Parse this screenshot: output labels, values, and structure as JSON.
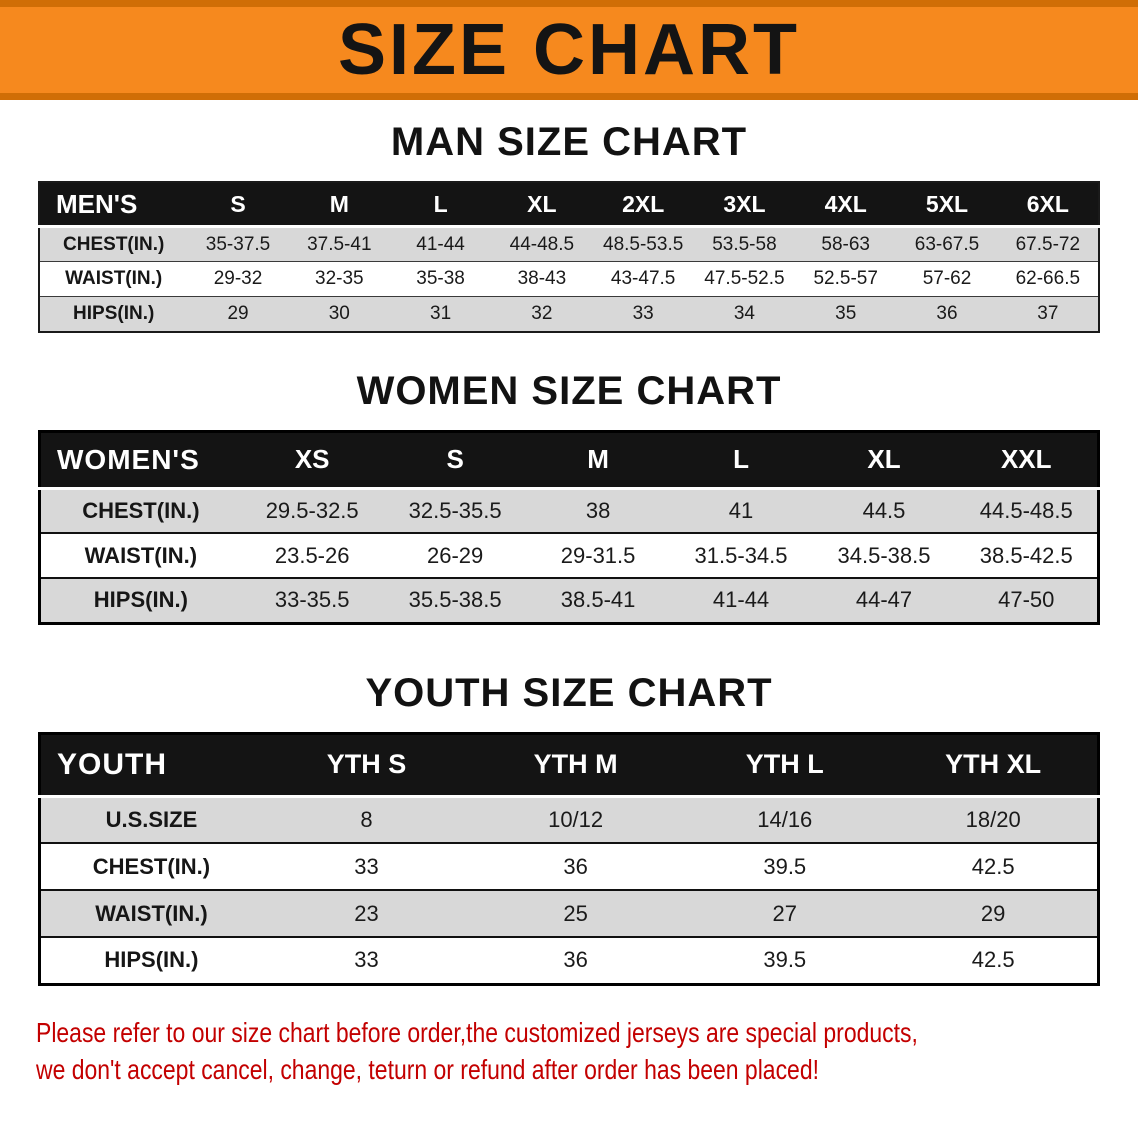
{
  "banner": {
    "title": "SIZE CHART"
  },
  "sections": [
    {
      "id": "men",
      "title": "MAN SIZE CHART",
      "header_label": "MEN'S",
      "columns": [
        "S",
        "M",
        "L",
        "XL",
        "2XL",
        "3XL",
        "4XL",
        "5XL",
        "6XL"
      ],
      "rows": [
        {
          "label": "CHEST(IN.)",
          "values": [
            "35-37.5",
            "37.5-41",
            "41-44",
            "44-48.5",
            "48.5-53.5",
            "53.5-58",
            "58-63",
            "63-67.5",
            "67.5-72"
          ]
        },
        {
          "label": "WAIST(IN.)",
          "values": [
            "29-32",
            "32-35",
            "35-38",
            "38-43",
            "43-47.5",
            "47.5-52.5",
            "52.5-57",
            "57-62",
            "62-66.5"
          ]
        },
        {
          "label": "HIPS(IN.)",
          "values": [
            "29",
            "30",
            "31",
            "32",
            "33",
            "34",
            "35",
            "36",
            "37"
          ]
        }
      ]
    },
    {
      "id": "women",
      "title": "WOMEN SIZE CHART",
      "header_label": "WOMEN'S",
      "columns": [
        "XS",
        "S",
        "M",
        "L",
        "XL",
        "XXL"
      ],
      "rows": [
        {
          "label": "CHEST(IN.)",
          "values": [
            "29.5-32.5",
            "32.5-35.5",
            "38",
            "41",
            "44.5",
            "44.5-48.5"
          ]
        },
        {
          "label": "WAIST(IN.)",
          "values": [
            "23.5-26",
            "26-29",
            "29-31.5",
            "31.5-34.5",
            "34.5-38.5",
            "38.5-42.5"
          ]
        },
        {
          "label": "HIPS(IN.)",
          "values": [
            "33-35.5",
            "35.5-38.5",
            "38.5-41",
            "41-44",
            "44-47",
            "47-50"
          ]
        }
      ]
    },
    {
      "id": "youth",
      "title": "YOUTH SIZE CHART",
      "header_label": "YOUTH",
      "columns": [
        "YTH S",
        "YTH M",
        "YTH L",
        "YTH XL"
      ],
      "rows": [
        {
          "label": "U.S.SIZE",
          "values": [
            "8",
            "10/12",
            "14/16",
            "18/20"
          ]
        },
        {
          "label": "CHEST(IN.)",
          "values": [
            "33",
            "36",
            "39.5",
            "42.5"
          ]
        },
        {
          "label": "WAIST(IN.)",
          "values": [
            "23",
            "25",
            "27",
            "29"
          ]
        },
        {
          "label": "HIPS(IN.)",
          "values": [
            "33",
            "36",
            "39.5",
            "42.5"
          ]
        }
      ]
    }
  ],
  "footer": {
    "line1": "Please refer to our size chart before order,the customized jerseys are special products,",
    "line2": "we don't accept cancel, change, teturn or refund after order has been placed!"
  },
  "colors": {
    "banner_orange": "#F6891E",
    "banner_edge": "#D06E06",
    "table_header_black": "#141414",
    "row_gray": "#D8D8D8",
    "notice_red": "#C30000"
  }
}
